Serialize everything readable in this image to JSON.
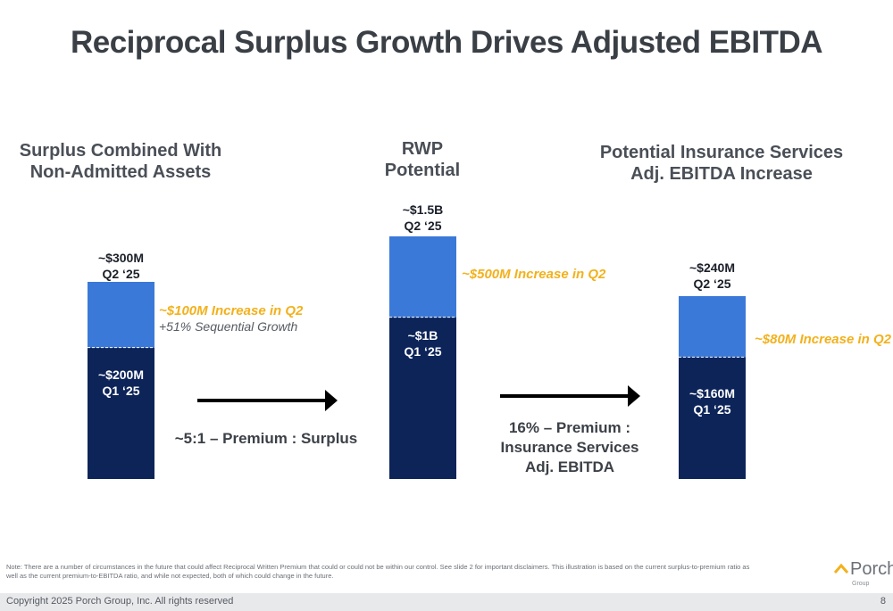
{
  "title": "Reciprocal Surplus Growth Drives Adjusted EBITDA",
  "chart_data": [
    {
      "type": "bar",
      "stacked": true,
      "title_lines": [
        "Surplus Combined With",
        "Non-Admitted Assets"
      ],
      "unit": "$M",
      "segments": [
        {
          "name": "Q1 '25",
          "value": 200,
          "label_lines": [
            "~$200M",
            "Q1 ‘25"
          ],
          "color": "#0d2459"
        },
        {
          "name": "Increase in Q2",
          "value": 100,
          "label_lines": [
            "~$100M Increase in Q2",
            "+51% Sequential Growth"
          ],
          "color": "#3a79d8"
        }
      ],
      "total_label_lines": [
        "~$300M",
        "Q2 ‘25"
      ],
      "total": 300
    },
    {
      "type": "bar",
      "stacked": true,
      "title_lines": [
        "RWP",
        "Potential"
      ],
      "unit": "$M",
      "segments": [
        {
          "name": "Q1 '25",
          "value": 1000,
          "label_lines": [
            "~$1B",
            "Q1 ‘25"
          ],
          "color": "#0d2459"
        },
        {
          "name": "Increase in Q2",
          "value": 500,
          "label_lines": [
            "~$500M Increase in Q2"
          ],
          "color": "#3a79d8"
        }
      ],
      "total_label_lines": [
        "~$1.5B",
        "Q2 ‘25"
      ],
      "total": 1500
    },
    {
      "type": "bar",
      "stacked": true,
      "title_lines": [
        "Potential Insurance Services",
        "Adj. EBITDA Increase"
      ],
      "unit": "$M",
      "segments": [
        {
          "name": "Q1 '25",
          "value": 160,
          "label_lines": [
            "~$160M",
            "Q1 ‘25"
          ],
          "color": "#0d2459"
        },
        {
          "name": "Increase in Q2",
          "value": 80,
          "label_lines": [
            "~$80M Increase in Q2"
          ],
          "color": "#3a79d8"
        }
      ],
      "total_label_lines": [
        "~$240M",
        "Q2 ‘25"
      ],
      "total": 240
    }
  ],
  "connectors": [
    {
      "lines": [
        "~5:1 – Premium : Surplus"
      ]
    },
    {
      "lines": [
        "16% – Premium :",
        "Insurance Services",
        "Adj. EBITDA"
      ]
    }
  ],
  "colors": {
    "q1_segment": "#0d2459",
    "increase_segment": "#3a79d8",
    "increase_text": "#f2b11c",
    "arrow": "#000000"
  },
  "note": "Note: There are a number of circumstances in the future that could affect Reciprocal Written Premium that could or could not be within our control. See slide 2 for important disclaimers. This illustration is based on the current surplus-to-premium ratio as well as the current premium-to-EBITDA ratio, and while not expected, both of which could change in the future.",
  "footer": {
    "copyright": "Copyright 2025 Porch Group, Inc. All rights reserved",
    "page_number": "8"
  },
  "logo": {
    "word": "Porch",
    "sub": "Group",
    "icon": "roof-chevron-icon"
  }
}
